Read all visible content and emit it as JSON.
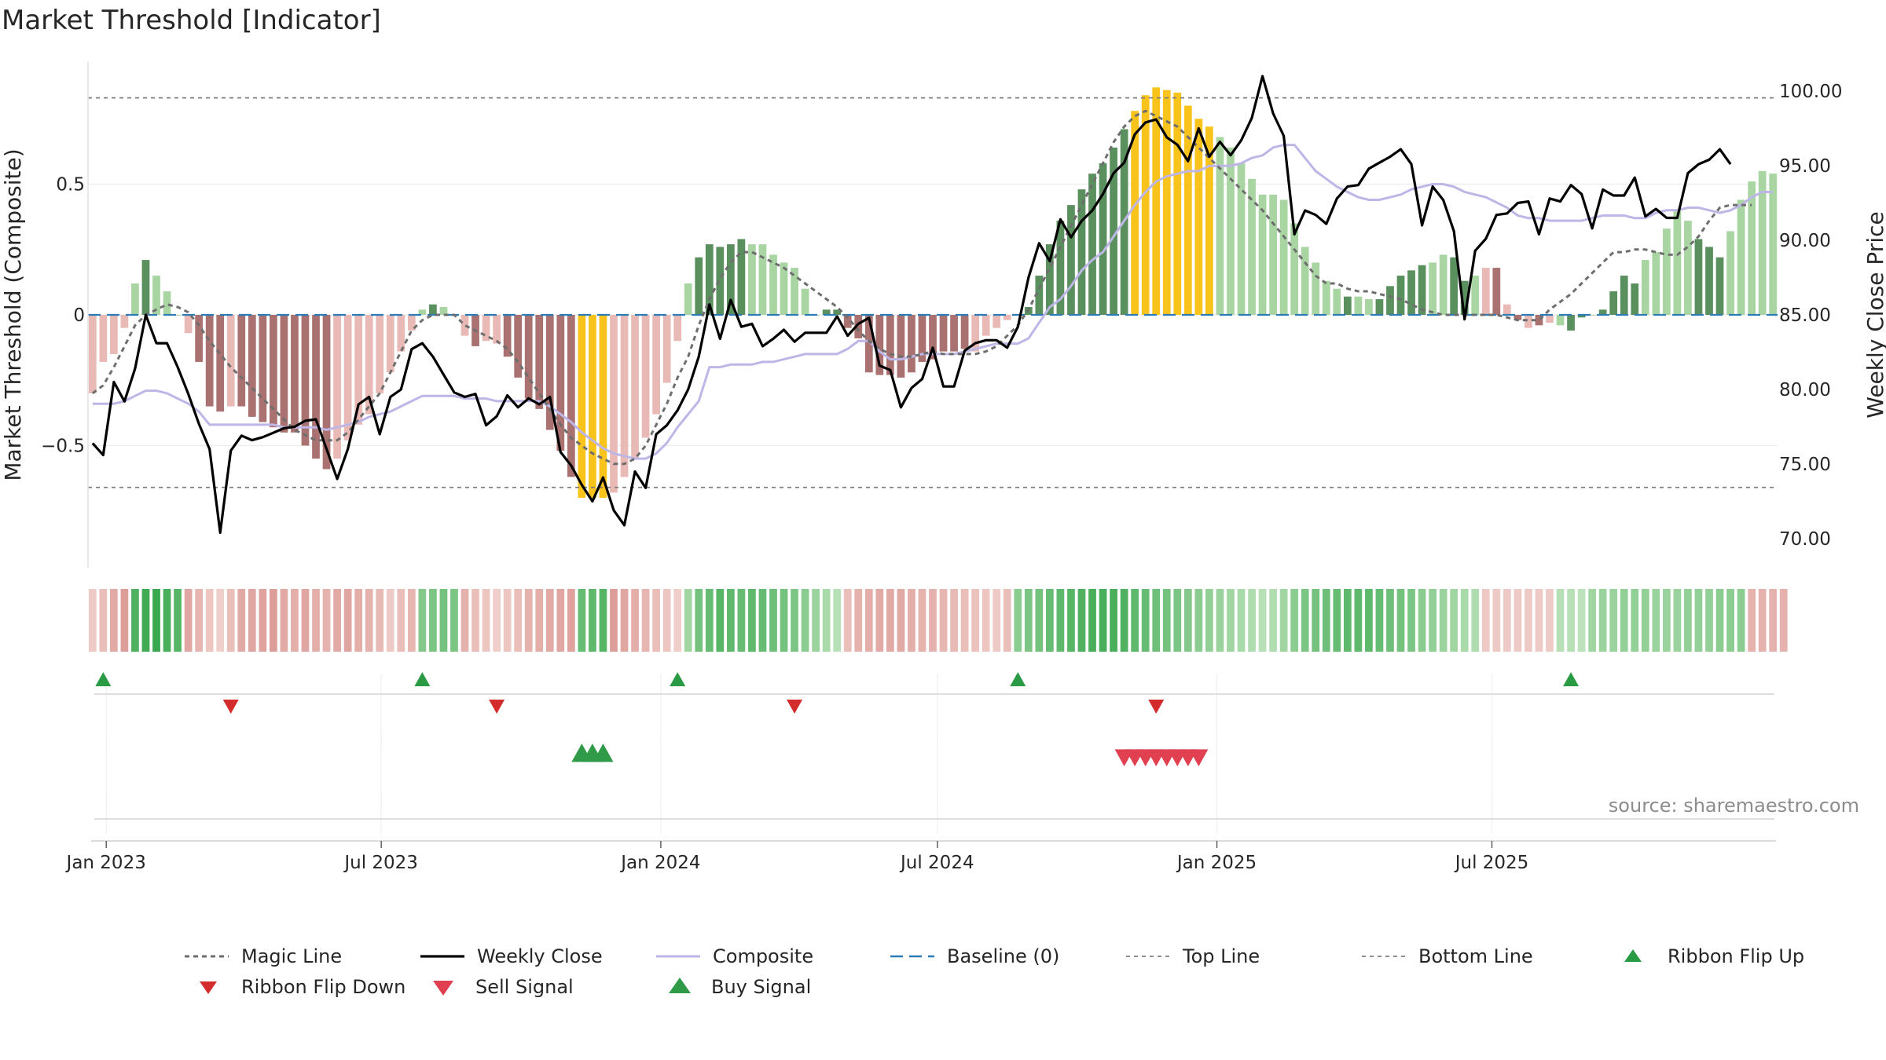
{
  "title": "Market Threshold [Indicator]",
  "source": "source: sharemaestro.com",
  "colors": {
    "strong_green": "#5a8f5e",
    "light_green": "#a8d5a2",
    "strong_red": "#a97270",
    "light_red": "#e9bab5",
    "yellow": "#f8c31b",
    "weekly_close": "#000000",
    "composite": "#bdb6e6",
    "magic_line": "#6e6e6e",
    "baseline": "#2c7bb6",
    "threshold": "#7f7f7f",
    "ribbon_up_marker": "#2a9a45",
    "ribbon_down_marker": "#d42c2c",
    "sell_marker": "#e0404f",
    "buy_marker": "#2f9a48"
  },
  "chart_data": {
    "type": "bar",
    "start_date": "2022-12-23",
    "period_days": 7,
    "x_ticks": [
      {
        "label": "Jan 2023",
        "date": "2023-01-01"
      },
      {
        "label": "Jul 2023",
        "date": "2023-07-01"
      },
      {
        "label": "Jan 2024",
        "date": "2024-01-01"
      },
      {
        "label": "Jul 2024",
        "date": "2024-07-01"
      },
      {
        "label": "Jan 2025",
        "date": "2025-01-01"
      },
      {
        "label": "Jul 2025",
        "date": "2025-07-01"
      }
    ],
    "left_axis": {
      "label": "Market Threshold (Composite)",
      "ylim": [
        -0.97,
        0.97
      ],
      "ticks": [
        {
          "v": 0.5,
          "label": "0.5"
        },
        {
          "v": 0,
          "label": "0"
        },
        {
          "v": -0.5,
          "label": "−0.5"
        }
      ]
    },
    "right_axis": {
      "label": "Weekly Close Price",
      "ylim": [
        68.0,
        102.0
      ],
      "ticks": [
        "70.00",
        "75.00",
        "80.00",
        "85.00",
        "90.00",
        "95.00",
        "100.00"
      ]
    },
    "top_line": 0.83,
    "bottom_line": -0.66,
    "bars": [
      -0.3,
      -0.18,
      -0.15,
      -0.05,
      0.12,
      0.21,
      0.15,
      0.09,
      0.0,
      -0.07,
      -0.18,
      -0.35,
      -0.37,
      -0.35,
      -0.35,
      -0.39,
      -0.41,
      -0.43,
      -0.45,
      -0.45,
      -0.5,
      -0.55,
      -0.59,
      -0.55,
      -0.48,
      -0.42,
      -0.38,
      -0.3,
      -0.22,
      -0.14,
      -0.06,
      0.02,
      0.04,
      0.03,
      0.0,
      -0.08,
      -0.12,
      -0.1,
      -0.11,
      -0.16,
      -0.24,
      -0.32,
      -0.36,
      -0.44,
      -0.52,
      -0.62,
      -0.7,
      -0.7,
      -0.7,
      -0.68,
      -0.62,
      -0.55,
      -0.47,
      -0.38,
      -0.26,
      -0.1,
      0.12,
      0.22,
      0.27,
      0.26,
      0.27,
      0.29,
      0.27,
      0.27,
      0.23,
      0.2,
      0.18,
      0.1,
      0.0,
      0.02,
      0.02,
      -0.05,
      -0.09,
      -0.22,
      -0.23,
      -0.23,
      -0.24,
      -0.22,
      -0.18,
      -0.17,
      -0.14,
      -0.14,
      -0.13,
      -0.14,
      -0.08,
      -0.05,
      -0.02,
      0.0,
      0.03,
      0.15,
      0.27,
      0.36,
      0.42,
      0.48,
      0.54,
      0.58,
      0.64,
      0.71,
      0.78,
      0.84,
      0.87,
      0.86,
      0.85,
      0.8,
      0.75,
      0.72,
      0.68,
      0.64,
      0.58,
      0.52,
      0.46,
      0.46,
      0.44,
      0.35,
      0.26,
      0.2,
      0.13,
      0.1,
      0.07,
      0.07,
      0.06,
      0.06,
      0.11,
      0.15,
      0.17,
      0.19,
      0.2,
      0.23,
      0.22,
      0.13,
      0.15,
      0.18,
      0.18,
      0.04,
      -0.02,
      -0.05,
      -0.04,
      -0.03,
      -0.04,
      -0.06,
      -0.01,
      0.0,
      0.02,
      0.09,
      0.15,
      0.12,
      0.21,
      0.24,
      0.33,
      0.4,
      0.36,
      0.29,
      0.26,
      0.22,
      0.32,
      0.44,
      0.51,
      0.55,
      0.54
    ],
    "bar_types": [
      "LR",
      "LR",
      "LR",
      "LR",
      "LG",
      "SG",
      "LG",
      "LG",
      "LG",
      "LR",
      "SR",
      "SR",
      "SR",
      "LR",
      "SR",
      "SR",
      "SR",
      "SR",
      "SR",
      "SR",
      "SR",
      "SR",
      "SR",
      "LR",
      "LR",
      "LR",
      "LR",
      "LR",
      "LR",
      "LR",
      "LR",
      "LG",
      "SG",
      "LG",
      "LG",
      "LR",
      "SR",
      "LR",
      "LR",
      "SR",
      "SR",
      "SR",
      "SR",
      "SR",
      "SR",
      "SR",
      "Y",
      "Y",
      "Y",
      "LR",
      "LR",
      "LR",
      "LR",
      "LR",
      "LR",
      "LR",
      "LG",
      "SG",
      "SG",
      "SG",
      "SG",
      "SG",
      "LG",
      "LG",
      "LG",
      "LG",
      "LG",
      "LG",
      "LG",
      "SG",
      "SG",
      "SR",
      "SR",
      "SR",
      "SR",
      "SR",
      "SR",
      "SR",
      "SR",
      "SR",
      "SR",
      "SR",
      "SR",
      "LR",
      "LR",
      "LR",
      "LR",
      "LG",
      "SG",
      "SG",
      "SG",
      "SG",
      "SG",
      "SG",
      "SG",
      "SG",
      "SG",
      "SG",
      "Y",
      "Y",
      "Y",
      "Y",
      "Y",
      "Y",
      "Y",
      "Y",
      "LG",
      "LG",
      "LG",
      "LG",
      "LG",
      "LG",
      "LG",
      "LG",
      "LG",
      "LG",
      "LG",
      "LG",
      "SG",
      "LG",
      "LG",
      "SG",
      "SG",
      "SG",
      "SG",
      "SG",
      "LG",
      "LG",
      "SG",
      "SG",
      "LG",
      "LR",
      "SR",
      "LR",
      "SR",
      "LR",
      "SR",
      "LR",
      "LG",
      "SG",
      "SG",
      "LG",
      "SG",
      "SG",
      "SG",
      "SG",
      "LG",
      "LG",
      "LG",
      "LG",
      "LG",
      "SG",
      "SG",
      "SG",
      "LG",
      "LG"
    ],
    "weekly_close": [
      76.4,
      75.6,
      80.5,
      79.2,
      81.4,
      85.0,
      83.1,
      83.1,
      81.5,
      79.7,
      77.7,
      76.0,
      70.4,
      75.9,
      76.9,
      76.6,
      76.8,
      77.1,
      77.4,
      77.5,
      77.9,
      78.0,
      76.0,
      74.0,
      76.0,
      79.0,
      79.5,
      77.0,
      79.5,
      80.0,
      82.7,
      83.1,
      82.2,
      81.0,
      79.8,
      79.5,
      79.7,
      77.6,
      78.2,
      79.6,
      78.8,
      79.4,
      79.0,
      79.5,
      75.8,
      74.9,
      73.6,
      72.5,
      74.1,
      71.9,
      70.9,
      74.5,
      73.4,
      77.0,
      77.6,
      78.6,
      80.0,
      82.2,
      85.7,
      83.4,
      86.0,
      84.2,
      84.4,
      82.9,
      83.4,
      84.0,
      83.2,
      83.8,
      83.8,
      83.8,
      84.9,
      83.6,
      84.4,
      84.8,
      81.6,
      81.3,
      78.8,
      80.1,
      80.7,
      82.8,
      80.2,
      80.2,
      82.6,
      83.1,
      83.3,
      83.3,
      82.8,
      84.2,
      87.5,
      89.8,
      88.6,
      91.4,
      90.2,
      91.3,
      92.0,
      93.1,
      94.5,
      95.2,
      97.1,
      97.9,
      98.1,
      96.9,
      96.4,
      95.3,
      97.5,
      95.6,
      96.6,
      95.7,
      96.7,
      98.2,
      101.0,
      98.5,
      97.0,
      90.4,
      92.0,
      91.7,
      91.1,
      92.8,
      93.6,
      93.7,
      94.8,
      95.2,
      95.6,
      96.1,
      95.1,
      91.0,
      93.6,
      92.7,
      90.6,
      84.7,
      89.3,
      90.1,
      91.7,
      91.8,
      92.5,
      92.6,
      90.4,
      92.8,
      92.6,
      93.7,
      93.1,
      90.8,
      93.4,
      93.0,
      93.0,
      94.2,
      91.6,
      92.1,
      91.5,
      91.5,
      94.5,
      95.1,
      95.4,
      96.1,
      95.1
    ],
    "composite": [
      -0.34,
      -0.34,
      -0.34,
      -0.33,
      -0.31,
      -0.29,
      -0.29,
      -0.3,
      -0.32,
      -0.34,
      -0.37,
      -0.42,
      -0.42,
      -0.42,
      -0.42,
      -0.42,
      -0.42,
      -0.42,
      -0.43,
      -0.43,
      -0.43,
      -0.43,
      -0.44,
      -0.43,
      -0.42,
      -0.41,
      -0.39,
      -0.38,
      -0.37,
      -0.35,
      -0.33,
      -0.31,
      -0.31,
      -0.31,
      -0.31,
      -0.32,
      -0.32,
      -0.32,
      -0.33,
      -0.33,
      -0.33,
      -0.33,
      -0.33,
      -0.35,
      -0.38,
      -0.41,
      -0.45,
      -0.48,
      -0.51,
      -0.53,
      -0.54,
      -0.55,
      -0.55,
      -0.53,
      -0.49,
      -0.43,
      -0.38,
      -0.33,
      -0.2,
      -0.2,
      -0.19,
      -0.19,
      -0.19,
      -0.18,
      -0.18,
      -0.17,
      -0.16,
      -0.15,
      -0.15,
      -0.15,
      -0.15,
      -0.13,
      -0.1,
      -0.1,
      -0.14,
      -0.17,
      -0.17,
      -0.16,
      -0.15,
      -0.15,
      -0.15,
      -0.15,
      -0.14,
      -0.13,
      -0.12,
      -0.11,
      -0.11,
      -0.11,
      -0.09,
      -0.03,
      0.03,
      0.06,
      0.11,
      0.17,
      0.21,
      0.24,
      0.3,
      0.36,
      0.42,
      0.47,
      0.51,
      0.53,
      0.54,
      0.55,
      0.55,
      0.57,
      0.57,
      0.57,
      0.58,
      0.6,
      0.61,
      0.64,
      0.65,
      0.65,
      0.6,
      0.55,
      0.52,
      0.49,
      0.47,
      0.45,
      0.44,
      0.44,
      0.45,
      0.46,
      0.48,
      0.49,
      0.5,
      0.5,
      0.49,
      0.47,
      0.46,
      0.45,
      0.43,
      0.41,
      0.38,
      0.37,
      0.37,
      0.36,
      0.36,
      0.36,
      0.36,
      0.37,
      0.38,
      0.38,
      0.38,
      0.37,
      0.37,
      0.39,
      0.4,
      0.4,
      0.41,
      0.41,
      0.4,
      0.39,
      0.4,
      0.42,
      0.45,
      0.47,
      0.47
    ],
    "magic_line": [
      -0.3,
      -0.27,
      -0.2,
      -0.12,
      -0.04,
      0.0,
      0.02,
      0.04,
      0.03,
      0.01,
      -0.04,
      -0.1,
      -0.15,
      -0.2,
      -0.24,
      -0.28,
      -0.32,
      -0.36,
      -0.4,
      -0.44,
      -0.46,
      -0.48,
      -0.48,
      -0.48,
      -0.45,
      -0.4,
      -0.35,
      -0.3,
      -0.22,
      -0.14,
      -0.06,
      -0.02,
      0.0,
      0.0,
      0.0,
      -0.04,
      -0.06,
      -0.08,
      -0.1,
      -0.13,
      -0.18,
      -0.24,
      -0.3,
      -0.36,
      -0.42,
      -0.47,
      -0.5,
      -0.53,
      -0.55,
      -0.57,
      -0.57,
      -0.55,
      -0.5,
      -0.42,
      -0.34,
      -0.24,
      -0.16,
      -0.04,
      0.06,
      0.14,
      0.2,
      0.24,
      0.24,
      0.22,
      0.2,
      0.18,
      0.15,
      0.12,
      0.09,
      0.06,
      0.03,
      -0.01,
      -0.06,
      -0.1,
      -0.13,
      -0.15,
      -0.16,
      -0.16,
      -0.15,
      -0.14,
      -0.15,
      -0.15,
      -0.15,
      -0.15,
      -0.14,
      -0.12,
      -0.08,
      -0.04,
      0.02,
      0.1,
      0.18,
      0.26,
      0.34,
      0.42,
      0.5,
      0.58,
      0.66,
      0.72,
      0.76,
      0.78,
      0.76,
      0.74,
      0.72,
      0.68,
      0.64,
      0.6,
      0.56,
      0.52,
      0.48,
      0.44,
      0.4,
      0.35,
      0.3,
      0.25,
      0.2,
      0.15,
      0.12,
      0.12,
      0.1,
      0.09,
      0.09,
      0.08,
      0.07,
      0.06,
      0.04,
      0.02,
      0.01,
      0.0,
      0.0,
      0.0,
      0.0,
      0.0,
      0.0,
      -0.01,
      -0.02,
      -0.02,
      -0.02,
      0.02,
      0.05,
      0.08,
      0.12,
      0.16,
      0.2,
      0.24,
      0.24,
      0.25,
      0.25,
      0.24,
      0.23,
      0.23,
      0.26,
      0.3,
      0.36,
      0.41,
      0.42,
      0.42,
      0.42
    ],
    "ribbon": [
      0.15,
      0.3,
      0.55,
      0.7,
      0.85,
      0.95,
      1.0,
      0.9,
      0.8,
      0.6,
      0.4,
      0.2,
      0.1,
      0.3,
      0.55,
      0.6,
      0.65,
      0.7,
      0.55,
      0.5,
      0.6,
      0.5,
      0.45,
      0.55,
      0.6,
      0.5,
      0.45,
      0.35,
      0.15,
      0.3,
      0.4,
      0.5,
      0.55,
      0.6,
      0.55,
      0.45,
      0.3,
      0.2,
      0.1,
      0.2,
      0.3,
      0.45,
      0.5,
      0.55,
      0.6,
      0.65,
      0.7,
      0.75,
      0.8,
      0.7,
      0.6,
      0.5,
      0.4,
      0.3,
      0.2,
      0.1,
      0.3,
      0.6,
      0.7,
      0.8,
      0.75,
      0.7,
      0.75,
      0.7,
      0.65,
      0.6,
      0.55,
      0.45,
      0.35,
      0.25,
      0.15,
      0.3,
      0.45,
      0.5,
      0.55,
      0.55,
      0.55,
      0.5,
      0.45,
      0.45,
      0.4,
      0.35,
      0.3,
      0.25,
      0.2,
      0.15,
      0.3,
      0.45,
      0.55,
      0.6,
      0.7,
      0.75,
      0.8,
      0.85,
      0.9,
      0.9,
      0.9,
      0.85,
      0.75,
      0.7,
      0.65,
      0.6,
      0.55,
      0.5,
      0.45,
      0.4,
      0.35,
      0.3,
      0.25,
      0.2,
      0.15,
      0.2,
      0.3,
      0.45,
      0.55,
      0.6,
      0.65,
      0.7,
      0.75,
      0.75,
      0.75,
      0.7,
      0.65,
      0.6,
      0.55,
      0.45,
      0.4,
      0.35,
      0.3,
      0.25,
      0.2,
      0.15,
      0.15,
      0.15,
      0.15,
      0.15,
      0.15,
      0.15,
      0.15,
      0.15,
      0.1,
      0.3,
      0.35,
      0.35,
      0.4,
      0.4,
      0.4,
      0.35,
      0.35,
      0.35,
      0.4,
      0.4,
      0.4,
      0.45,
      0.45,
      0.45,
      0.45,
      0.45,
      0.45,
      0.45
    ],
    "ribbon_flip_up": [
      1,
      31,
      55,
      87,
      139
    ],
    "ribbon_flip_down": [
      13,
      38,
      66,
      100
    ],
    "buy_signal": [
      46,
      47,
      48
    ],
    "sell_signal": [
      97,
      98,
      99,
      100,
      101,
      102,
      103,
      104
    ],
    "legend": [
      {
        "key": "magic",
        "label": "Magic Line"
      },
      {
        "key": "close",
        "label": "Weekly Close"
      },
      {
        "key": "composite",
        "label": "Composite"
      },
      {
        "key": "baseline",
        "label": "Baseline (0)"
      },
      {
        "key": "top",
        "label": "Top Line"
      },
      {
        "key": "bottom",
        "label": "Bottom Line"
      },
      {
        "key": "flipup",
        "label": "Ribbon Flip Up"
      },
      {
        "key": "flipdown",
        "label": "Ribbon Flip Down"
      },
      {
        "key": "sell",
        "label": "Sell Signal"
      },
      {
        "key": "buy",
        "label": "Buy Signal"
      }
    ]
  }
}
